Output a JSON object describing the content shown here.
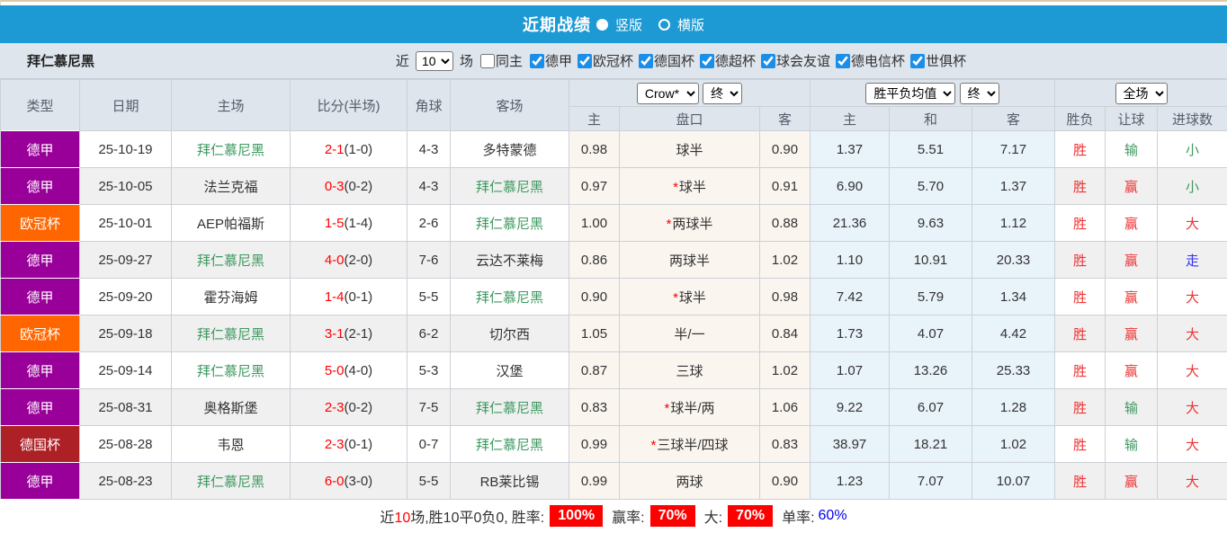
{
  "header": {
    "title": "近期战绩",
    "radio_vertical_label": "竖版",
    "radio_horizontal_label": "横版",
    "selected_view": "竖版"
  },
  "toolbar": {
    "team": "拜仁慕尼黑",
    "near_label": "近",
    "matches_label": "场",
    "match_count": "10",
    "same_home_label": "同主",
    "same_home_checked": false,
    "leagues": [
      "德甲",
      "欧冠杯",
      "德国杯",
      "德超杯",
      "球会友谊",
      "德电信杯",
      "世俱杯"
    ]
  },
  "table": {
    "col_headers": {
      "type": "类型",
      "date": "日期",
      "home": "主场",
      "score": "比分(半场)",
      "corner": "角球",
      "away": "客场",
      "odds_home": "主",
      "handicap": "盘口",
      "odds_away": "客",
      "avg_home": "主",
      "avg_draw": "和",
      "avg_away": "客",
      "result": "胜负",
      "let_goal": "让球",
      "goal_count": "进球数"
    },
    "selects": {
      "bookmaker": "Crow*",
      "bookmaker_state": "终",
      "avg_name": "胜平负均值",
      "avg_state": "终",
      "scope": "全场"
    },
    "rows": [
      {
        "type": "德甲",
        "type_color": "purple",
        "date": "25-10-19",
        "home": "拜仁慕尼黑",
        "home_green": true,
        "score": "2-1",
        "half": "(1-0)",
        "corner": "4-3",
        "away": "多特蒙德",
        "away_green": false,
        "odds_home": "0.98",
        "star": false,
        "handicap": "球半",
        "odds_away": "0.90",
        "avg_home": "1.37",
        "avg_draw": "5.51",
        "avg_away": "7.17",
        "result": "胜",
        "let_goal": "输",
        "let_color": "green",
        "goals": "小",
        "goals_color": "green"
      },
      {
        "type": "德甲",
        "type_color": "purple",
        "date": "25-10-05",
        "home": "法兰克福",
        "home_green": false,
        "score": "0-3",
        "half": "(0-2)",
        "corner": "4-3",
        "away": "拜仁慕尼黑",
        "away_green": true,
        "odds_home": "0.97",
        "star": true,
        "handicap": "球半",
        "odds_away": "0.91",
        "avg_home": "6.90",
        "avg_draw": "5.70",
        "avg_away": "1.37",
        "result": "胜",
        "let_goal": "赢",
        "let_color": "red",
        "goals": "小",
        "goals_color": "green"
      },
      {
        "type": "欧冠杯",
        "type_color": "orange",
        "date": "25-10-01",
        "home": "AEP帕福斯",
        "home_green": false,
        "score": "1-5",
        "half": "(1-4)",
        "corner": "2-6",
        "away": "拜仁慕尼黑",
        "away_green": true,
        "odds_home": "1.00",
        "star": true,
        "handicap": "两球半",
        "odds_away": "0.88",
        "avg_home": "21.36",
        "avg_draw": "9.63",
        "avg_away": "1.12",
        "result": "胜",
        "let_goal": "赢",
        "let_color": "red",
        "goals": "大",
        "goals_color": "red"
      },
      {
        "type": "德甲",
        "type_color": "purple",
        "date": "25-09-27",
        "home": "拜仁慕尼黑",
        "home_green": true,
        "score": "4-0",
        "half": "(2-0)",
        "corner": "7-6",
        "away": "云达不莱梅",
        "away_green": false,
        "odds_home": "0.86",
        "star": false,
        "handicap": "两球半",
        "odds_away": "1.02",
        "avg_home": "1.10",
        "avg_draw": "10.91",
        "avg_away": "20.33",
        "result": "胜",
        "let_goal": "赢",
        "let_color": "red",
        "goals": "走",
        "goals_color": "blue"
      },
      {
        "type": "德甲",
        "type_color": "purple",
        "date": "25-09-20",
        "home": "霍芬海姆",
        "home_green": false,
        "score": "1-4",
        "half": "(0-1)",
        "corner": "5-5",
        "away": "拜仁慕尼黑",
        "away_green": true,
        "odds_home": "0.90",
        "star": true,
        "handicap": "球半",
        "odds_away": "0.98",
        "avg_home": "7.42",
        "avg_draw": "5.79",
        "avg_away": "1.34",
        "result": "胜",
        "let_goal": "赢",
        "let_color": "red",
        "goals": "大",
        "goals_color": "red"
      },
      {
        "type": "欧冠杯",
        "type_color": "orange",
        "date": "25-09-18",
        "home": "拜仁慕尼黑",
        "home_green": true,
        "score": "3-1",
        "half": "(2-1)",
        "corner": "6-2",
        "away": "切尔西",
        "away_green": false,
        "odds_home": "1.05",
        "star": false,
        "handicap": "半/一",
        "odds_away": "0.84",
        "avg_home": "1.73",
        "avg_draw": "4.07",
        "avg_away": "4.42",
        "result": "胜",
        "let_goal": "赢",
        "let_color": "red",
        "goals": "大",
        "goals_color": "red"
      },
      {
        "type": "德甲",
        "type_color": "purple",
        "date": "25-09-14",
        "home": "拜仁慕尼黑",
        "home_green": true,
        "score": "5-0",
        "half": "(4-0)",
        "corner": "5-3",
        "away": "汉堡",
        "away_green": false,
        "odds_home": "0.87",
        "star": false,
        "handicap": "三球",
        "odds_away": "1.02",
        "avg_home": "1.07",
        "avg_draw": "13.26",
        "avg_away": "25.33",
        "result": "胜",
        "let_goal": "赢",
        "let_color": "red",
        "goals": "大",
        "goals_color": "red"
      },
      {
        "type": "德甲",
        "type_color": "purple",
        "date": "25-08-31",
        "home": "奥格斯堡",
        "home_green": false,
        "score": "2-3",
        "half": "(0-2)",
        "corner": "7-5",
        "away": "拜仁慕尼黑",
        "away_green": true,
        "odds_home": "0.83",
        "star": true,
        "handicap": "球半/两",
        "odds_away": "1.06",
        "avg_home": "9.22",
        "avg_draw": "6.07",
        "avg_away": "1.28",
        "result": "胜",
        "let_goal": "输",
        "let_color": "green",
        "goals": "大",
        "goals_color": "red"
      },
      {
        "type": "德国杯",
        "type_color": "darkred",
        "date": "25-08-28",
        "home": "韦恩",
        "home_green": false,
        "score": "2-3",
        "half": "(0-1)",
        "corner": "0-7",
        "away": "拜仁慕尼黑",
        "away_green": true,
        "odds_home": "0.99",
        "star": true,
        "handicap": "三球半/四球",
        "odds_away": "0.83",
        "avg_home": "38.97",
        "avg_draw": "18.21",
        "avg_away": "1.02",
        "result": "胜",
        "let_goal": "输",
        "let_color": "green",
        "goals": "大",
        "goals_color": "red"
      },
      {
        "type": "德甲",
        "type_color": "purple",
        "date": "25-08-23",
        "home": "拜仁慕尼黑",
        "home_green": true,
        "score": "6-0",
        "half": "(3-0)",
        "corner": "5-5",
        "away": "RB莱比锡",
        "away_green": false,
        "odds_home": "0.99",
        "star": false,
        "handicap": "两球",
        "odds_away": "0.90",
        "avg_home": "1.23",
        "avg_draw": "7.07",
        "avg_away": "10.07",
        "result": "胜",
        "let_goal": "赢",
        "let_color": "red",
        "goals": "大",
        "goals_color": "red"
      }
    ]
  },
  "summary": {
    "prefix": "近",
    "count": "10",
    "mid": "场,胜10平0负0, ",
    "win_rate_label": "胜率:",
    "win_rate": "100%",
    "handicap_rate_label": "赢率:",
    "handicap_rate": "70%",
    "big_label": "大:",
    "big_rate": "70%",
    "single_label": "单率:",
    "single_rate": "60%"
  },
  "colors": {
    "bar_blue": "#1d9ad3",
    "purple": "#990099",
    "orange": "#ff6600",
    "darkred": "#ac2026",
    "green": "#3E9960",
    "red": "#ee3333",
    "blue": "#3333ee"
  }
}
